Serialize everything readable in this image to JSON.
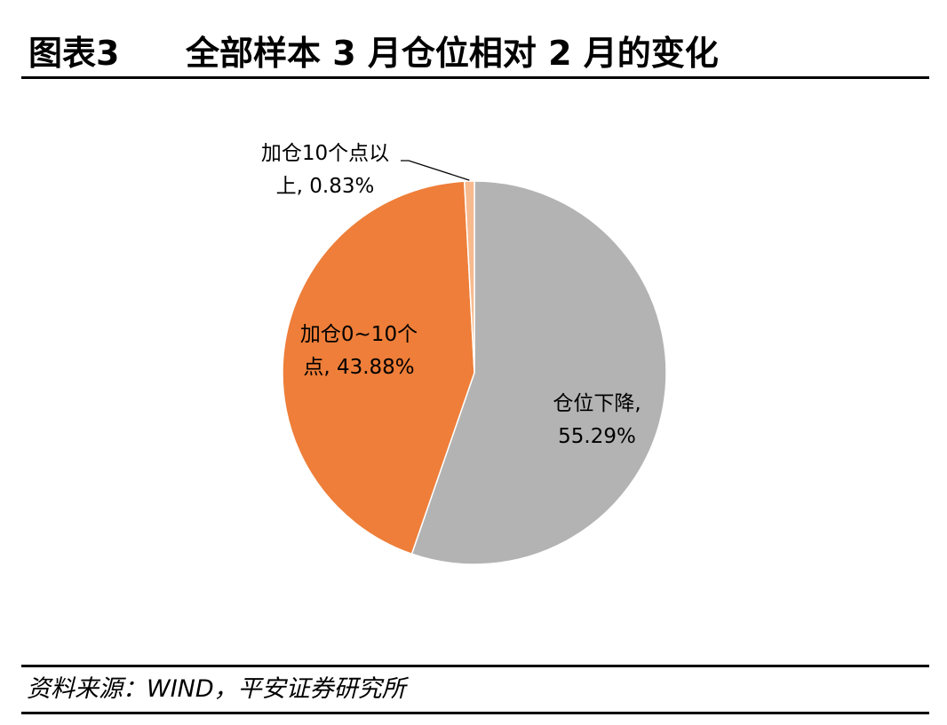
{
  "header": {
    "figure_label": "图表3",
    "title": "全部样本 3 月仓位相对 2 月的变化"
  },
  "chart_data": {
    "type": "pie",
    "slices": [
      {
        "name": "仓位下降",
        "value": 55.29,
        "color": "#b3b3b3",
        "label_lines": [
          "仓位下降,",
          "55.29%"
        ]
      },
      {
        "name": "加仓0~10个点",
        "value": 43.88,
        "color": "#ee7e39",
        "label_lines": [
          "加仓0~10个",
          "点, 43.88%"
        ]
      },
      {
        "name": "加仓10个点以上",
        "value": 0.83,
        "color": "#f7ba8e",
        "label_lines": [
          "加仓10个点以",
          "上, 0.83%"
        ]
      }
    ],
    "start_angle": "12 o'clock",
    "direction": "clockwise",
    "legend": "none"
  },
  "footer": {
    "source": "资料来源：WIND，平安证券研究所"
  }
}
